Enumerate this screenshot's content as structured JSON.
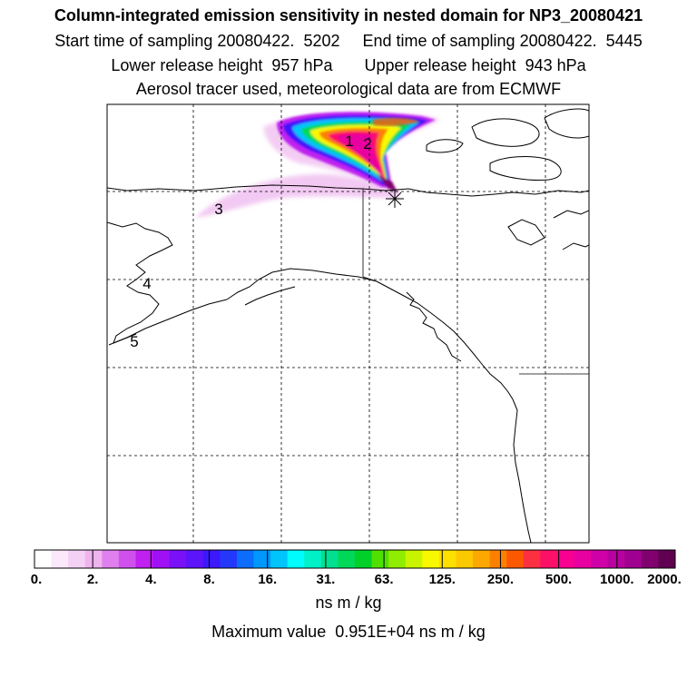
{
  "header": {
    "title": "Column-integrated emission sensitivity in nested domain for NP3_20080421",
    "line2": "Start time of sampling 20080422.  5202     End time of sampling 20080422.  5445",
    "line3": "Lower release height  957 hPa       Upper release height  943 hPa",
    "line4": "Aerosol tracer used, meteorological data are from ECMWF"
  },
  "map": {
    "region": "Alaska / western Canada / Pacific Northwest",
    "point_labels": [
      "1",
      "2",
      "3",
      "4",
      "5"
    ]
  },
  "colorbar": {
    "tick_labels": [
      "0.",
      "2.",
      "4.",
      "8.",
      "16.",
      "31.",
      "63.",
      "125.",
      "250.",
      "500.",
      "1000.",
      "2000."
    ],
    "colors": [
      "#ffffff",
      "#fbe8fb",
      "#f5d0f5",
      "#eeb4ee",
      "#e080ee",
      "#d050ee",
      "#c020f0",
      "#a010f4",
      "#7a10f8",
      "#5c14fa",
      "#3c18fc",
      "#2438fc",
      "#0c6cfc",
      "#0098fc",
      "#00c4fc",
      "#00fcfc",
      "#00f0c8",
      "#00e090",
      "#00d858",
      "#00d028",
      "#50e000",
      "#90ec00",
      "#c8f400",
      "#f8f800",
      "#fce000",
      "#fcc800",
      "#fca800",
      "#fc8000",
      "#fc5800",
      "#fc3040",
      "#fc1068",
      "#f80090",
      "#e800a0",
      "#d000a8",
      "#b800a0",
      "#a00090",
      "#800070",
      "#600050"
    ],
    "units": "ns m / kg"
  },
  "max_value": "Maximum value  0.951E+04 ns m / kg"
}
